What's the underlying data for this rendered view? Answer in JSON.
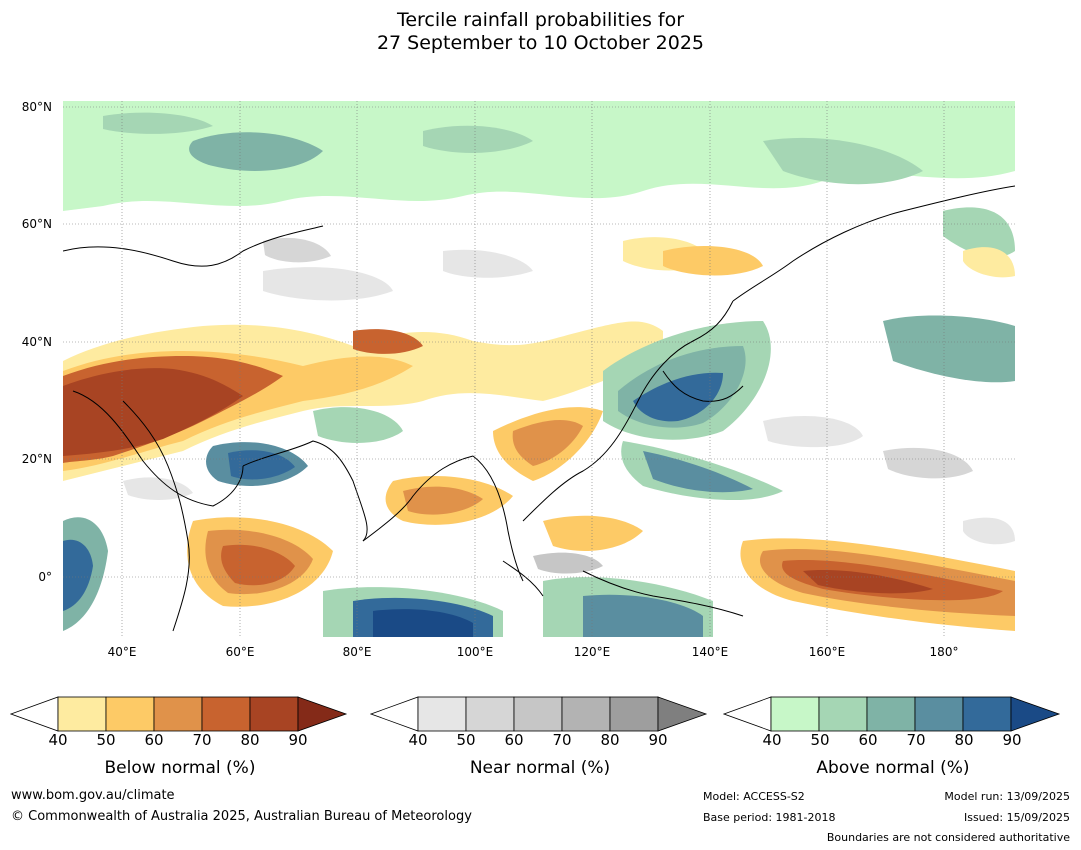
{
  "title": {
    "line1": "Tercile rainfall probabilities for",
    "line2": "27 September to 10 October 2025"
  },
  "map": {
    "latitude_labels": [
      "80°N",
      "60°N",
      "40°N",
      "20°N",
      "0°"
    ],
    "longitude_labels": [
      "40°E",
      "60°E",
      "80°E",
      "100°E",
      "120°E",
      "140°E",
      "160°E",
      "180°"
    ]
  },
  "legends": {
    "below": {
      "label": "Below normal (%)",
      "ticks": [
        "40",
        "50",
        "60",
        "70",
        "80",
        "90"
      ],
      "colors": [
        "#ffffff",
        "#feeba0",
        "#fdca66",
        "#e0924a",
        "#c8632f",
        "#a84423",
        "#842a18"
      ]
    },
    "near": {
      "label": "Near normal (%)",
      "ticks": [
        "40",
        "50",
        "60",
        "70",
        "80",
        "90"
      ],
      "colors": [
        "#ffffff",
        "#e6e6e6",
        "#d6d6d6",
        "#c6c6c6",
        "#b3b3b3",
        "#9e9e9e",
        "#7f7f7f"
      ]
    },
    "above": {
      "label": "Above normal (%)",
      "ticks": [
        "40",
        "50",
        "60",
        "70",
        "80",
        "90"
      ],
      "colors": [
        "#ffffff",
        "#c7f7c8",
        "#a5d6b4",
        "#7fb3a6",
        "#5a8ea0",
        "#336a9a",
        "#1a4a86"
      ]
    }
  },
  "footer": {
    "url": "www.bom.gov.au/climate",
    "copyright": "© Commonwealth of Australia 2025, Australian Bureau of Meteorology",
    "model": "Model: ACCESS-S2",
    "base_period": "Base period: 1981-2018",
    "model_run": "Model run: 13/09/2025",
    "issued": "Issued: 15/09/2025",
    "disclaimer": "Boundaries are not considered authoritative"
  }
}
